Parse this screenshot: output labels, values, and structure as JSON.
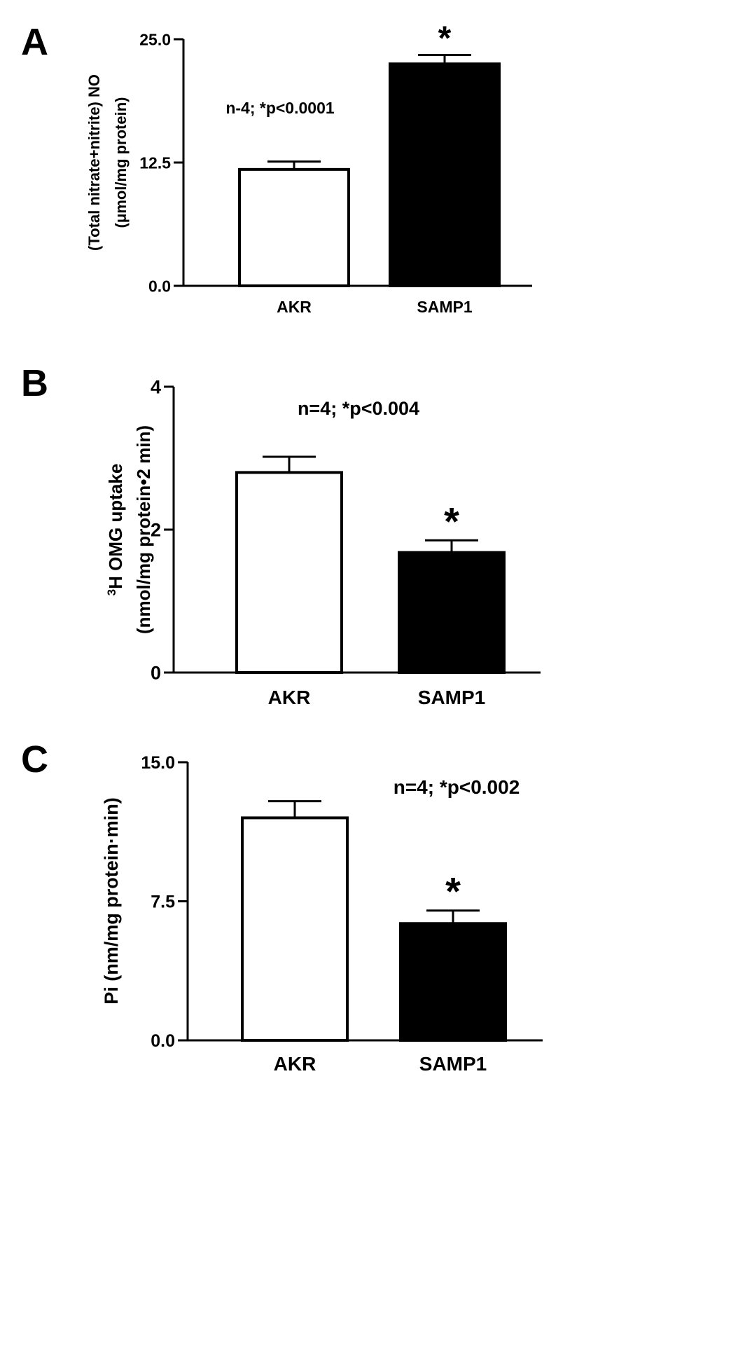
{
  "chart_data": [
    {
      "panel": "A",
      "type": "bar",
      "categories": [
        "AKR",
        "SAMP1"
      ],
      "values": [
        11.8,
        22.5
      ],
      "errors": [
        0.8,
        0.9
      ],
      "bar_colors": [
        "#ffffff",
        "#000000"
      ],
      "significance": [
        "",
        "*"
      ],
      "annotation": "n-4; *p<0.0001",
      "ylabel": [
        "(Total nitrate+nitrite) NO",
        "(μmol/mg protein)"
      ],
      "ylim": [
        0,
        25
      ],
      "yticks": [
        {
          "value": 0,
          "label": "0.0"
        },
        {
          "value": 12.5,
          "label": "12.5"
        },
        {
          "value": 25,
          "label": "25.0"
        }
      ],
      "grid": false,
      "legend": "none"
    },
    {
      "panel": "B",
      "type": "bar",
      "categories": [
        "AKR",
        "SAMP1"
      ],
      "values": [
        2.8,
        1.68
      ],
      "errors": [
        0.22,
        0.17
      ],
      "bar_colors": [
        "#ffffff",
        "#000000"
      ],
      "significance": [
        "",
        "*"
      ],
      "annotation": "n=4; *p<0.004",
      "ylabel": [
        "3H OMG uptake",
        "(nmol/mg protein•2 min)"
      ],
      "ylim": [
        0,
        4
      ],
      "yticks": [
        {
          "value": 0,
          "label": "0"
        },
        {
          "value": 2,
          "label": "2"
        },
        {
          "value": 4,
          "label": "4"
        }
      ],
      "grid": false,
      "legend": "none"
    },
    {
      "panel": "C",
      "type": "bar",
      "categories": [
        "AKR",
        "SAMP1"
      ],
      "values": [
        12.0,
        6.3
      ],
      "errors": [
        0.9,
        0.7
      ],
      "bar_colors": [
        "#ffffff",
        "#000000"
      ],
      "significance": [
        "",
        "*"
      ],
      "annotation": "n=4; *p<0.002",
      "ylabel": [
        "Pi (nm/mg protein·min)"
      ],
      "ylim": [
        0,
        15
      ],
      "yticks": [
        {
          "value": 0,
          "label": "0.0"
        },
        {
          "value": 7.5,
          "label": "7.5"
        },
        {
          "value": 15,
          "label": "15.0"
        }
      ],
      "grid": false,
      "legend": "none"
    }
  ]
}
